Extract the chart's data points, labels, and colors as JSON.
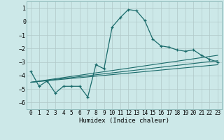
{
  "title": "",
  "xlabel": "Humidex (Indice chaleur)",
  "background_color": "#cce8e8",
  "grid_color": "#b0c8c8",
  "line_color": "#1a6b6b",
  "xlim": [
    -0.5,
    23.5
  ],
  "ylim": [
    -6.5,
    1.5
  ],
  "yticks": [
    1,
    0,
    -1,
    -2,
    -3,
    -4,
    -5,
    -6
  ],
  "xticks": [
    0,
    1,
    2,
    3,
    4,
    5,
    6,
    7,
    8,
    9,
    10,
    11,
    12,
    13,
    14,
    15,
    16,
    17,
    18,
    19,
    20,
    21,
    22,
    23
  ],
  "series1_x": [
    0,
    1,
    2,
    3,
    4,
    5,
    6,
    7,
    8,
    9,
    10,
    11,
    12,
    13,
    14,
    15,
    16,
    17,
    18,
    19,
    20,
    21,
    22,
    23
  ],
  "series1_y": [
    -3.7,
    -4.8,
    -4.4,
    -5.3,
    -4.8,
    -4.8,
    -4.8,
    -5.6,
    -3.2,
    -3.5,
    -0.4,
    0.3,
    0.9,
    0.8,
    0.1,
    -1.3,
    -1.8,
    -1.9,
    -2.1,
    -2.2,
    -2.1,
    -2.5,
    -2.8,
    -3.0
  ],
  "series2_x": [
    0,
    23
  ],
  "series2_y": [
    -4.5,
    -2.5
  ],
  "series3_x": [
    0,
    23
  ],
  "series3_y": [
    -4.5,
    -2.9
  ],
  "series4_x": [
    0,
    23
  ],
  "series4_y": [
    -4.5,
    -3.2
  ]
}
